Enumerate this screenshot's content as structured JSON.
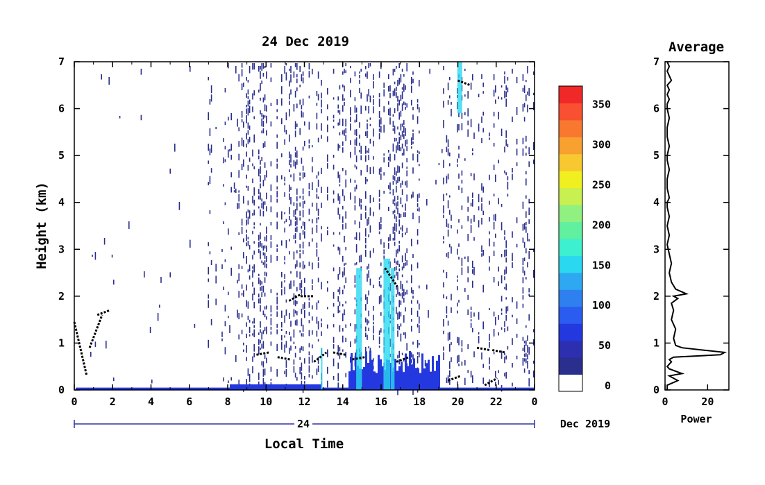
{
  "chart_data": [
    {
      "type": "heatmap",
      "title": "24 Dec 2019",
      "xlabel": "Local Time",
      "ylabel": "Height (km)",
      "xlim": [
        0,
        24
      ],
      "ylim": [
        0,
        7
      ],
      "x_ticks": [
        "0",
        "2",
        "4",
        "6",
        "8",
        "10",
        "12",
        "14",
        "16",
        "18",
        "20",
        "22",
        "0"
      ],
      "y_ticks": [
        "0",
        "1",
        "2",
        "3",
        "4",
        "5",
        "6",
        "7"
      ],
      "date_axis": {
        "day_label": "24",
        "month_label": "Dec 2019"
      },
      "colorbar": {
        "ticks": [
          "0",
          "50",
          "100",
          "150",
          "200",
          "250",
          "300",
          "350"
        ],
        "range": [
          0,
          380
        ],
        "colors": [
          "#ffffff",
          "#2a2e8c",
          "#2c30b0",
          "#2438e0",
          "#2a5cf0",
          "#2e80f0",
          "#2ea8f0",
          "#2ad8f0",
          "#3cf0d0",
          "#60f0a0",
          "#90f080",
          "#c8f050",
          "#f0f020",
          "#f8c830",
          "#f8a030",
          "#f87830",
          "#f85030",
          "#f02828"
        ]
      },
      "layers": {
        "noise": {
          "color": "#2a2e8c",
          "density": 0.12
        },
        "surface": {
          "color": "#2438e0"
        },
        "cloud_edge": {
          "color": "#000000"
        },
        "plume": {
          "color": "#2ad8f0"
        }
      }
    },
    {
      "type": "line",
      "title": "Average",
      "xlabel": "Power",
      "ylabel": "",
      "xlim": [
        0,
        30
      ],
      "ylim": [
        0,
        7
      ],
      "x_ticks": [
        "0",
        "20"
      ],
      "y_ticks": [
        "0",
        "1",
        "2",
        "3",
        "4",
        "5",
        "6",
        "7"
      ],
      "x": [
        1,
        1,
        6,
        2,
        8,
        2,
        1,
        2,
        3,
        2,
        4,
        26,
        28,
        18,
        8,
        5,
        4,
        5,
        3,
        4,
        3,
        6,
        4,
        10,
        5,
        3,
        2,
        3,
        2,
        1,
        2,
        1,
        2,
        1,
        1,
        2,
        1,
        1,
        2,
        1,
        1,
        2,
        1,
        1,
        2,
        1,
        1,
        2,
        1,
        2,
        1,
        3,
        2,
        1,
        2,
        1
      ],
      "y": [
        0,
        0.1,
        0.2,
        0.3,
        0.35,
        0.45,
        0.5,
        0.55,
        0.6,
        0.65,
        0.7,
        0.75,
        0.8,
        0.85,
        0.9,
        0.95,
        1.1,
        1.3,
        1.5,
        1.7,
        1.85,
        1.95,
        2.0,
        2.05,
        2.15,
        2.3,
        2.5,
        2.7,
        2.9,
        3.1,
        3.3,
        3.5,
        3.7,
        3.9,
        4.0,
        4.1,
        4.3,
        4.5,
        4.7,
        4.9,
        5.0,
        5.2,
        5.4,
        5.6,
        5.8,
        6.0,
        6.1,
        6.2,
        6.3,
        6.4,
        6.5,
        6.6,
        6.7,
        6.8,
        6.9,
        7.0
      ]
    }
  ]
}
